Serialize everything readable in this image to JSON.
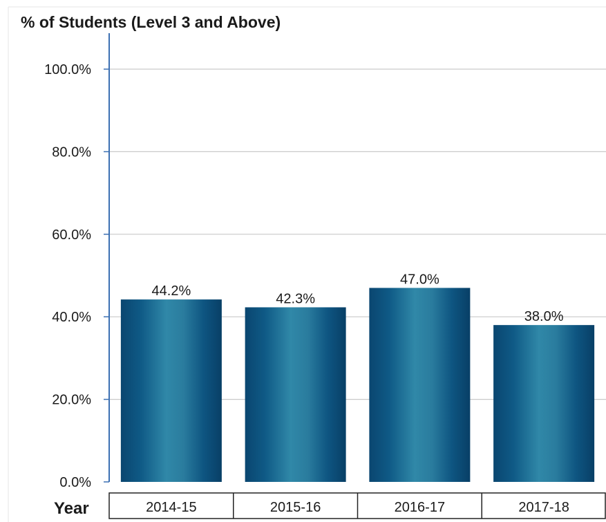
{
  "chart_data": {
    "type": "bar",
    "title": "% of Students (Level 3 and Above)",
    "xlabel": "Year",
    "ylabel": "",
    "categories": [
      "2014-15",
      "2015-16",
      "2016-17",
      "2017-18"
    ],
    "values": [
      44.2,
      42.3,
      47.0,
      38.0
    ],
    "value_labels": [
      "44.2%",
      "42.3%",
      "47.0%",
      "38.0%"
    ],
    "ylim": [
      0,
      100
    ],
    "yticks": [
      0,
      20,
      40,
      60,
      80,
      100
    ],
    "ytick_labels": [
      "0.0%",
      "20.0%",
      "40.0%",
      "60.0%",
      "80.0%",
      "100.0%"
    ],
    "grid": true,
    "legend": "none",
    "colors": {
      "bar_dark": "#0b4a73",
      "bar_light": "#2f86a6",
      "axis": "#3b6fb2",
      "grid": "#c9c9c9",
      "text": "#1a1a1a"
    }
  }
}
